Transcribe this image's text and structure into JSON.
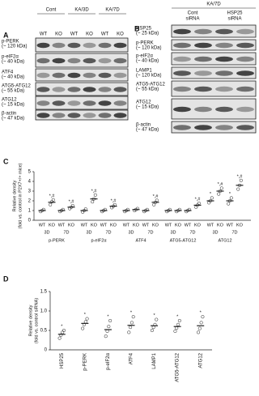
{
  "panel_a": {
    "label": "A",
    "conditions": [
      "Cont",
      "KA/3D",
      "KA/7D"
    ],
    "lanes": [
      "WT",
      "KO",
      "WT",
      "KO",
      "WT",
      "KO"
    ],
    "rows": [
      {
        "name": "p-PERK",
        "size": "(~ 120 kDa)"
      },
      {
        "name": "p-eIF2α",
        "size": "(~ 40 kDa)"
      },
      {
        "name": "ATF4",
        "size": "(~ 40 kDa)"
      },
      {
        "name": "ATG5-ATG12",
        "size": "(~ 55 kDa)"
      },
      {
        "name": "ATG12",
        "size": "(~ 15 kDa)"
      },
      {
        "name": "β-actin",
        "size": "(~ 47 kDa)"
      }
    ]
  },
  "panel_b": {
    "label": "B",
    "condition": "KA/7D",
    "groups": [
      [
        "Cont",
        "siRNA"
      ],
      [
        "HSP25",
        "siRNA"
      ]
    ],
    "rows": [
      {
        "name": "HSP25",
        "size": "(~ 25 kDa)"
      },
      {
        "name": "p-PERK",
        "size": "(~ 120 kDa)"
      },
      {
        "name": "p-eIF2α",
        "size": "(~ 40 kDa)"
      },
      {
        "name": "LAMP1",
        "size": "(~ 120 kDa)"
      },
      {
        "name": "ATG5-ATG12",
        "size": "(~ 55 kDa)"
      },
      {
        "name": "ATG12",
        "size": "(~ 15 kDa)"
      },
      {
        "name": "β-actin",
        "size": "(~ 47 kDa)"
      }
    ]
  },
  "chart_data": [
    {
      "type": "dot",
      "label": "C",
      "y_label": [
        "Relative density",
        "(fold vs. control in P2X7+/+ mice)"
      ],
      "categories": [
        "WT",
        "KO",
        "WT",
        "KO",
        "WT",
        "KO",
        "WT",
        "KO",
        "WT",
        "KO",
        "WT",
        "KO",
        "WT",
        "KO",
        "WT",
        "KO",
        "WT",
        "KO",
        "WT",
        "KO"
      ],
      "time_labels": [
        "3D",
        "7D",
        "3D",
        "7D",
        "3D",
        "7D",
        "3D",
        "7D",
        "3D",
        "7D"
      ],
      "groups": [
        "p-PERK",
        "p-eIF2α",
        "ATF4",
        "ATG5-ATG12",
        "ATG12"
      ],
      "values": [
        1.0,
        1.85,
        1.0,
        1.35,
        1.0,
        2.2,
        1.0,
        1.45,
        1.0,
        1.1,
        1.0,
        1.85,
        1.0,
        1.0,
        1.0,
        1.55,
        2.0,
        3.0,
        2.0,
        3.6
      ],
      "points": [
        [
          0.9,
          1.0,
          1.1
        ],
        [
          1.6,
          1.9,
          2.1
        ],
        [
          0.9,
          1.0,
          1.1
        ],
        [
          1.2,
          1.35,
          1.5
        ],
        [
          0.85,
          1.0,
          1.15
        ],
        [
          1.9,
          2.2,
          2.6
        ],
        [
          0.9,
          1.0,
          1.1
        ],
        [
          1.3,
          1.45,
          1.6
        ],
        [
          0.9,
          1.0,
          1.1
        ],
        [
          1.0,
          1.1,
          1.2
        ],
        [
          0.9,
          1.0,
          1.1
        ],
        [
          1.6,
          1.85,
          2.05
        ],
        [
          0.9,
          1.0,
          1.1
        ],
        [
          0.9,
          1.0,
          1.1
        ],
        [
          0.9,
          1.0,
          1.1
        ],
        [
          1.35,
          1.55,
          1.75
        ],
        [
          1.8,
          2.0,
          2.3
        ],
        [
          2.7,
          3.0,
          3.3
        ],
        [
          1.7,
          2.0,
          2.3
        ],
        [
          3.2,
          3.6,
          4.1
        ]
      ],
      "annotations": [
        null,
        "*,#",
        null,
        "*,#",
        null,
        "*,#",
        null,
        "*,#",
        null,
        null,
        null,
        "*,#",
        null,
        null,
        null,
        "*,#",
        "*",
        "*,#",
        "*",
        "*,#"
      ],
      "color": "#222222",
      "ylim": [
        0,
        5
      ],
      "yticks": [
        0,
        1,
        2,
        3,
        4,
        5
      ]
    },
    {
      "type": "dot",
      "label": "D",
      "y_label": [
        "Relative density",
        "(fold vs. control siRNA)"
      ],
      "categories": [
        "HSP25",
        "p-PERK",
        "p-eIF2α",
        "ATF4",
        "LAMP1",
        "ATG5-ATG12",
        "ATG12"
      ],
      "values": [
        0.4,
        0.68,
        0.52,
        0.63,
        0.62,
        0.6,
        0.62
      ],
      "points": [
        [
          0.3,
          0.38,
          0.45,
          0.5
        ],
        [
          0.55,
          0.65,
          0.72,
          0.8
        ],
        [
          0.35,
          0.48,
          0.6,
          0.75
        ],
        [
          0.45,
          0.58,
          0.7,
          0.85
        ],
        [
          0.5,
          0.58,
          0.65,
          0.78
        ],
        [
          0.48,
          0.56,
          0.65,
          0.75
        ],
        [
          0.45,
          0.55,
          0.7,
          0.85
        ]
      ],
      "annotations": [
        "*",
        "*",
        "*",
        "*",
        "*",
        "*",
        "*"
      ],
      "color": "#222222",
      "ylim": [
        0,
        1.5
      ],
      "yticks": [
        0,
        0.5,
        {
          "value": 1,
          "label": "1.0"
        },
        1.5
      ]
    }
  ]
}
